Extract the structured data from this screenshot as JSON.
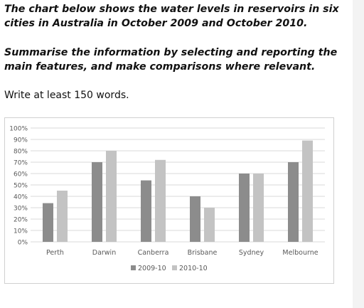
{
  "task": {
    "prompt_line": "The chart below shows the water levels in reservoirs in six cities in Australia in October 2009 and October 2010.",
    "summary_line": "Summarise the information by selecting and reporting the main features, and make comparisons where relevant.",
    "instruction": "Write at least 150 words."
  },
  "chart_data": {
    "type": "bar",
    "categories": [
      "Perth",
      "Darwin",
      "Canberra",
      "Brisbane",
      "Sydney",
      "Melbourne"
    ],
    "series": [
      {
        "name": "2009-10",
        "values": [
          34,
          70,
          54,
          40,
          60,
          70
        ],
        "color": "#8c8c8c"
      },
      {
        "name": "2010-10",
        "values": [
          45,
          80,
          72,
          30,
          60,
          89
        ],
        "color": "#c3c3c3"
      }
    ],
    "y_ticks": [
      "0%",
      "10%",
      "20%",
      "30%",
      "40%",
      "50%",
      "60%",
      "70%",
      "80%",
      "90%",
      "100%"
    ],
    "ylim": [
      0,
      100
    ],
    "grid": true,
    "legend": "bottom",
    "title": "",
    "xlabel": "",
    "ylabel": ""
  }
}
